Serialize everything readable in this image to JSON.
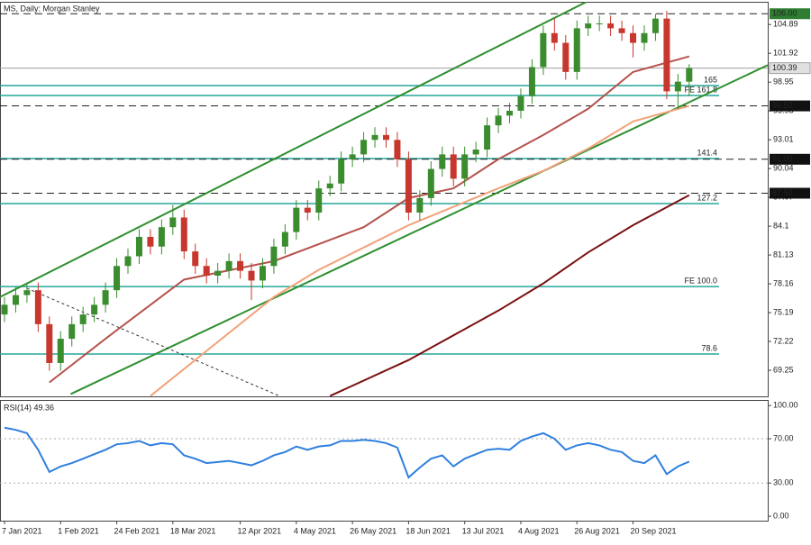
{
  "chart_data": [
    {
      "type": "candlestick",
      "title": "MS, Daily:  Morgan Stanley",
      "categories": [
        "7 Jan 2021",
        null,
        null,
        null,
        null,
        "1 Feb 2021",
        null,
        null,
        null,
        null,
        "24 Feb 2021",
        null,
        null,
        null,
        null,
        "18 Mar 2021",
        null,
        null,
        null,
        null,
        null,
        "12 Apr 2021",
        null,
        null,
        null,
        null,
        "4 May 2021",
        null,
        null,
        null,
        null,
        "26 May 2021",
        null,
        null,
        null,
        null,
        "18 Jun 2021",
        null,
        null,
        null,
        null,
        "13 Jul 2021",
        null,
        null,
        null,
        null,
        "4 Aug 2021",
        null,
        null,
        null,
        null,
        "26 Aug 2021",
        null,
        null,
        null,
        null,
        "20 Sep 2021",
        null,
        null,
        null,
        null,
        null
      ],
      "xlim": [
        -0.4,
        68
      ],
      "ylim": [
        66.56,
        107.23
      ],
      "yticks": [
        104.89,
        101.92,
        98.95,
        95.98,
        93.01,
        90.04,
        87.07,
        84.1,
        81.13,
        78.16,
        75.19,
        72.22,
        69.25
      ],
      "up_color": "#3a8c2f",
      "down_color": "#c8372d",
      "ohlc": [
        [
          75,
          76.8,
          74.2,
          76
        ],
        [
          76,
          77.8,
          75.2,
          77
        ],
        [
          77,
          78.3,
          76.2,
          77.5
        ],
        [
          77.5,
          78.3,
          73.2,
          74
        ],
        [
          74,
          74.8,
          69.2,
          70
        ],
        [
          70,
          73.3,
          69.2,
          72.5
        ],
        [
          72.5,
          74.8,
          71.7,
          74
        ],
        [
          74,
          75.8,
          73.2,
          75
        ],
        [
          75,
          76.8,
          74.2,
          76
        ],
        [
          76,
          78.3,
          75.2,
          77.5
        ],
        [
          77.5,
          80.8,
          76.7,
          80
        ],
        [
          80,
          81.8,
          79.2,
          81
        ],
        [
          81,
          83.8,
          80.2,
          83
        ],
        [
          83,
          83.8,
          81.2,
          82
        ],
        [
          82,
          84.8,
          81.2,
          84
        ],
        [
          84,
          86.3,
          83.2,
          85
        ],
        [
          85,
          85.8,
          80.7,
          81.5
        ],
        [
          81.5,
          82.3,
          79.2,
          80
        ],
        [
          80,
          80.8,
          78.2,
          79
        ],
        [
          79,
          80.3,
          78.2,
          79.5
        ],
        [
          79.5,
          81.3,
          78.7,
          80.5
        ],
        [
          80.5,
          81.3,
          78.7,
          79.5
        ],
        [
          79.5,
          80.3,
          76.5,
          78.5
        ],
        [
          78.5,
          80.8,
          77.7,
          80
        ],
        [
          80,
          82.8,
          79.2,
          82
        ],
        [
          82,
          84.3,
          81.2,
          83.5
        ],
        [
          83.5,
          86.8,
          82.7,
          86
        ],
        [
          86,
          86.8,
          84.7,
          85.5
        ],
        [
          85.5,
          88.8,
          84.7,
          88
        ],
        [
          88,
          89.3,
          87.2,
          88.5
        ],
        [
          88.5,
          91.8,
          87.7,
          91
        ],
        [
          91,
          92.3,
          90.2,
          91.5
        ],
        [
          91.5,
          93.8,
          90.7,
          93
        ],
        [
          93,
          94.3,
          92.2,
          93.5
        ],
        [
          93.5,
          94.3,
          92.2,
          93
        ],
        [
          93,
          93.8,
          90.2,
          91
        ],
        [
          91,
          91.8,
          84.7,
          85.5
        ],
        [
          85.5,
          87.8,
          84.7,
          87
        ],
        [
          87,
          90.8,
          86.2,
          90
        ],
        [
          90,
          92.3,
          89.2,
          91.5
        ],
        [
          91.5,
          92.3,
          88.2,
          89
        ],
        [
          89,
          92.3,
          88.2,
          91.5
        ],
        [
          91.5,
          92.8,
          90.7,
          92
        ],
        [
          92,
          95.3,
          91.2,
          94.5
        ],
        [
          94.5,
          96.3,
          93.7,
          95.5
        ],
        [
          95.5,
          96.8,
          94.7,
          96
        ],
        [
          96,
          98.3,
          95.2,
          97.5
        ],
        [
          97.5,
          101.3,
          96.7,
          100.5
        ],
        [
          100.5,
          104.8,
          99.7,
          104
        ],
        [
          104,
          105.5,
          102.2,
          103
        ],
        [
          103,
          103.8,
          99.2,
          100
        ],
        [
          100,
          105.3,
          99.2,
          104.5
        ],
        [
          104.5,
          105.8,
          103.7,
          105
        ],
        [
          105,
          105.8,
          104.2,
          105
        ],
        [
          105,
          105.8,
          103.7,
          104.5
        ],
        [
          104.5,
          105.3,
          103.2,
          104
        ],
        [
          104,
          104.8,
          101.5,
          103
        ],
        [
          103,
          104.8,
          102.2,
          104
        ],
        [
          104,
          106,
          103.2,
          105.5
        ],
        [
          105.5,
          106.3,
          97.2,
          98
        ],
        [
          98,
          99.8,
          96.2,
          99
        ],
        [
          99,
          100.8,
          97.5,
          100.4
        ]
      ],
      "moving_averages": [
        {
          "color": "#b5524c",
          "x": [
            4,
            9,
            16,
            24,
            32,
            36,
            40,
            44,
            48,
            52,
            56,
            61
          ],
          "values": [
            68,
            72.5,
            78.6,
            80.5,
            84,
            87,
            88,
            91,
            93.5,
            96.2,
            100,
            101.6
          ]
        },
        {
          "color": "#f2a27a",
          "x": [
            13,
            20,
            24,
            28,
            32,
            36,
            40,
            44,
            48,
            52,
            56,
            61
          ],
          "values": [
            66.6,
            73.1,
            76.8,
            79.6,
            81.9,
            84.2,
            86.1,
            88,
            89.8,
            92.1,
            94.9,
            96.5
          ]
        },
        {
          "color": "#7a1010",
          "x": [
            29,
            36,
            44,
            48,
            52,
            56,
            61
          ],
          "values": [
            66.6,
            70.3,
            75.4,
            78.2,
            81.4,
            84.2,
            87.3
          ]
        }
      ],
      "trendlines": [
        {
          "color": "#2f8f2f",
          "dash": false,
          "x": [
            -0.4,
            51.8
          ],
          "values": [
            76.8,
            107.2
          ]
        },
        {
          "color": "#2f8f2f",
          "dash": false,
          "x": [
            5.9,
            68
          ],
          "values": [
            66.8,
            100.7
          ]
        },
        {
          "color": "#333333",
          "dash": true,
          "x": [
            2,
            24.5
          ],
          "values": [
            77.7,
            66.6
          ]
        }
      ],
      "fib_levels": [
        {
          "name": "165",
          "value": 98.59,
          "color": "#26a69a"
        },
        {
          "name": "FE 161.8",
          "value": 97.57,
          "color": "#26a69a"
        },
        {
          "name": "141.4",
          "value": 91.07,
          "color": "#26a69a"
        },
        {
          "name": "127.2",
          "value": 86.43,
          "color": "#26a69a"
        },
        {
          "name": "FE 100.0",
          "value": 77.88,
          "color": "#26a69a"
        },
        {
          "name": "78.6",
          "value": 70.92,
          "color": "#26a69a"
        }
      ],
      "price_levels": [
        {
          "value": 106,
          "label": "106.00",
          "color": "#2e7d32"
        },
        {
          "value": 96.5,
          "label": "96.50",
          "color": "#111111"
        },
        {
          "value": 91,
          "label": "91.00",
          "color": "#111111"
        },
        {
          "value": 87.5,
          "label": "87.50",
          "color": "#111111"
        }
      ],
      "last_price": {
        "value": 100.39,
        "label": "100.39",
        "color": "#a0a0a0"
      }
    },
    {
      "type": "line",
      "title": "RSI(14) 49.36",
      "color": "#2f7fe0",
      "ylim": [
        -4,
        105
      ],
      "yticks": [
        {
          "value": 100,
          "label": "100.00"
        },
        {
          "value": 70,
          "label": "70.00"
        },
        {
          "value": 30,
          "label": "30.00"
        },
        {
          "value": 0,
          "label": "0.00"
        }
      ],
      "values": [
        80,
        78,
        75,
        60,
        40,
        45,
        48,
        52,
        56,
        60,
        65,
        66,
        68,
        64,
        66,
        65,
        55,
        52,
        48,
        49,
        50,
        48,
        46,
        50,
        55,
        58,
        63,
        60,
        63,
        64,
        68,
        68,
        69,
        68,
        66,
        62,
        35,
        44,
        52,
        55,
        45,
        52,
        56,
        60,
        61,
        60,
        68,
        72,
        75,
        70,
        60,
        64,
        66,
        64,
        60,
        58,
        50,
        48,
        55,
        38,
        45,
        49.36
      ]
    }
  ]
}
